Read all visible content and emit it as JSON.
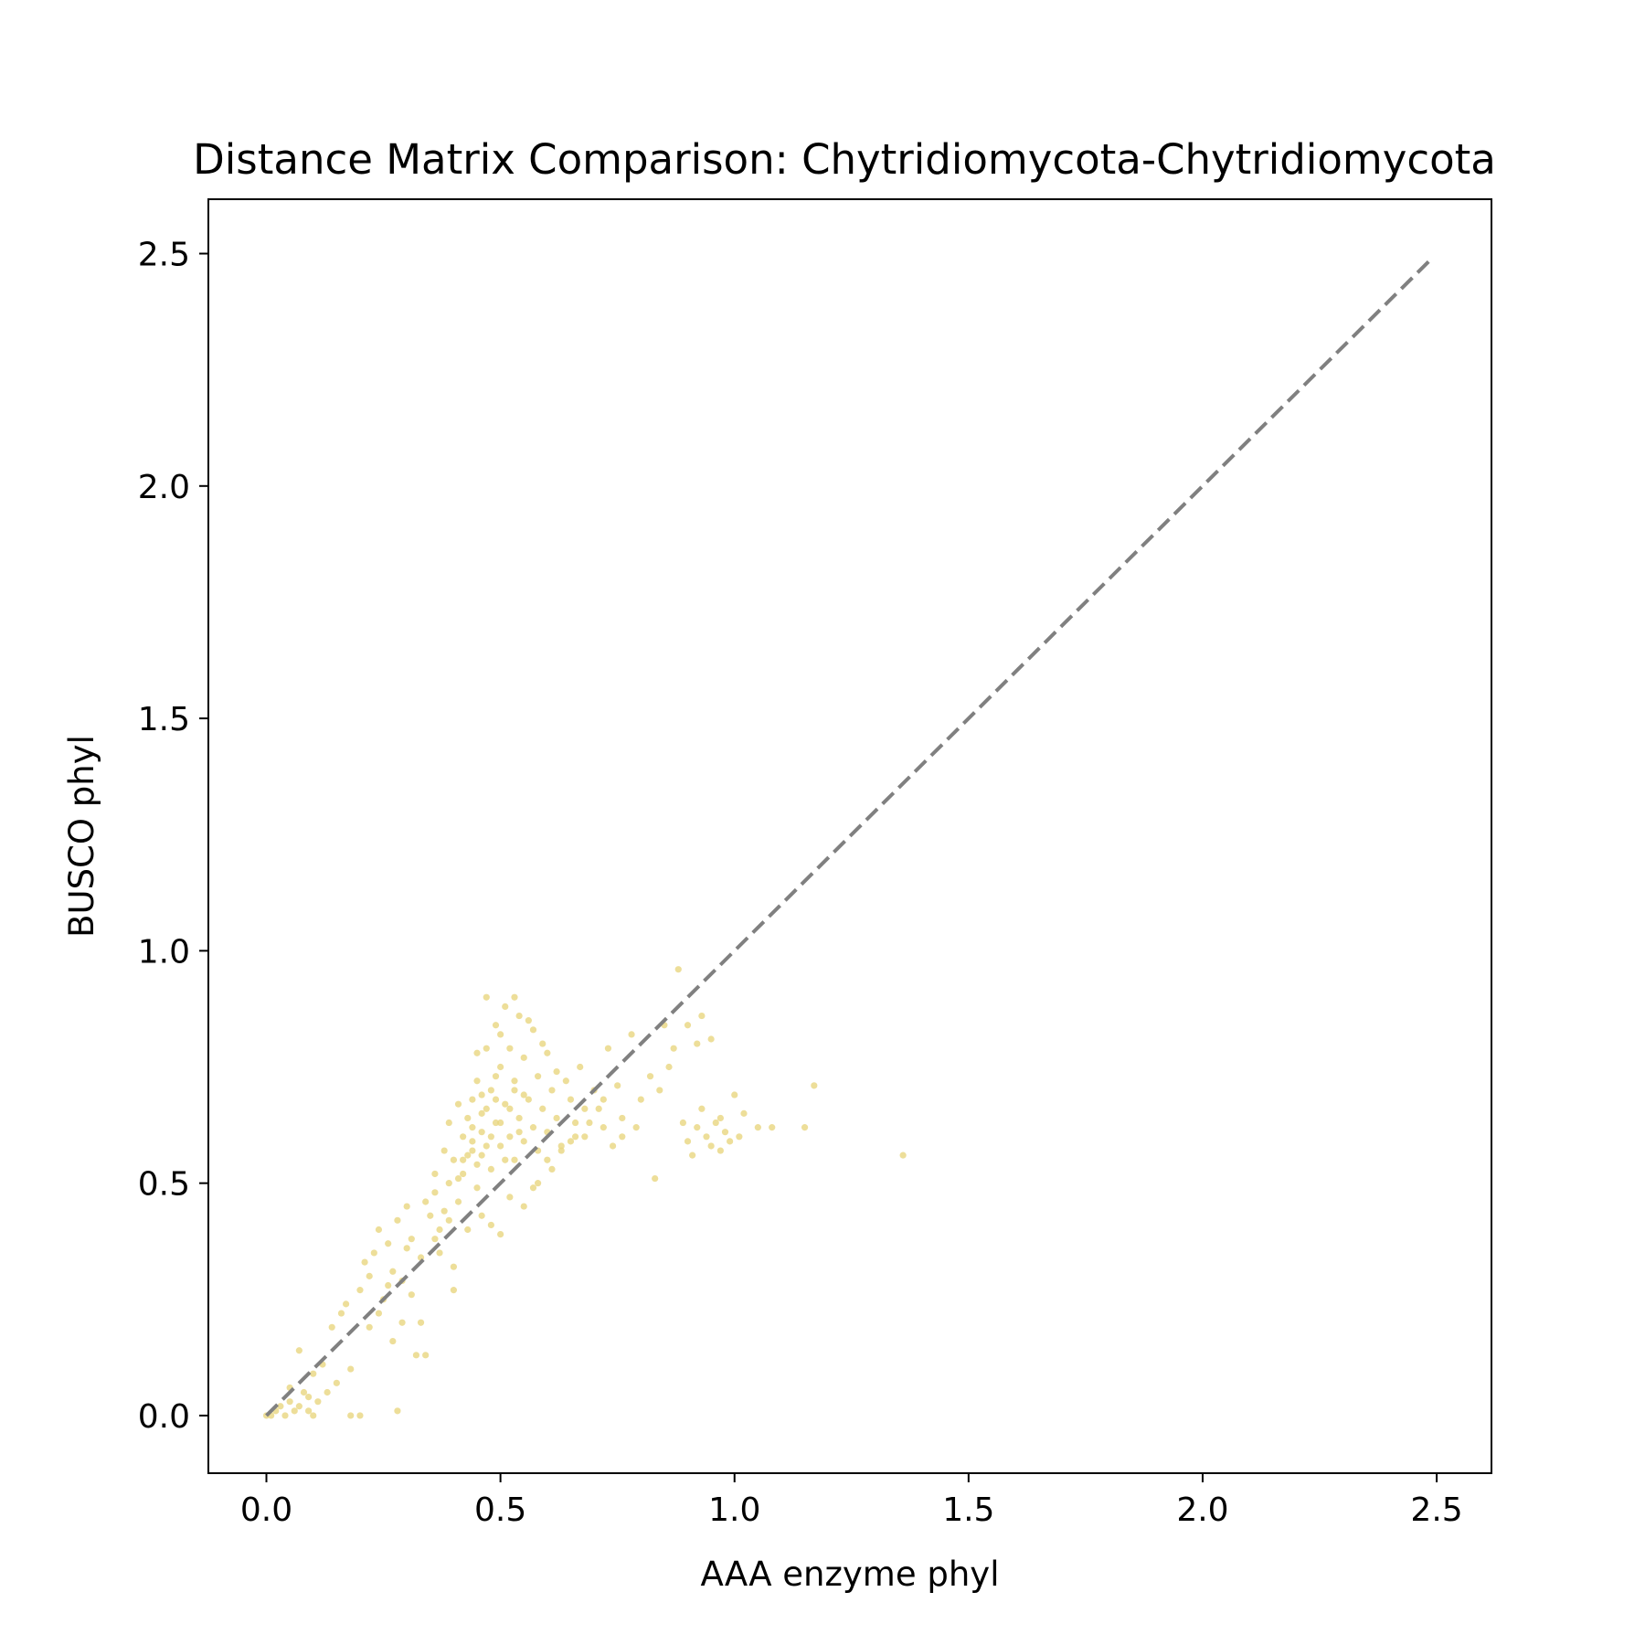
{
  "chart_data": {
    "type": "scatter",
    "title": "Distance Matrix Comparison: Chytridiomycota-Chytridiomycota",
    "xlabel": "AAA enzyme phyl",
    "ylabel": "BUSCO phyl",
    "xlim": [
      -0.124,
      2.617
    ],
    "ylim": [
      -0.124,
      2.617
    ],
    "xticks": [
      0.0,
      0.5,
      1.0,
      1.5,
      2.0,
      2.5
    ],
    "yticks": [
      0.0,
      0.5,
      1.0,
      1.5,
      2.0,
      2.5
    ],
    "xtick_labels": [
      "0.0",
      "0.5",
      "1.0",
      "1.5",
      "2.0",
      "2.5"
    ],
    "ytick_labels": [
      "0.0",
      "0.5",
      "1.0",
      "1.5",
      "2.0",
      "2.5"
    ],
    "grid": false,
    "point_color": "#e8d67f",
    "reference_line": {
      "style": "dashed",
      "color": "#808080",
      "x": [
        0.0,
        2.49
      ],
      "y": [
        0.0,
        2.49
      ]
    },
    "series": [
      {
        "values": [
          [
            0.0,
            0.0
          ],
          [
            0.01,
            0.0
          ],
          [
            0.02,
            0.01
          ],
          [
            0.03,
            0.02
          ],
          [
            0.04,
            0.0
          ],
          [
            0.05,
            0.03
          ],
          [
            0.06,
            0.01
          ],
          [
            0.07,
            0.02
          ],
          [
            0.08,
            0.05
          ],
          [
            0.09,
            0.04
          ],
          [
            0.1,
            0.0
          ],
          [
            0.1,
            0.09
          ],
          [
            0.07,
            0.14
          ],
          [
            0.05,
            0.06
          ],
          [
            0.12,
            0.11
          ],
          [
            0.14,
            0.19
          ],
          [
            0.16,
            0.22
          ],
          [
            0.17,
            0.24
          ],
          [
            0.18,
            0.0
          ],
          [
            0.2,
            0.0
          ],
          [
            0.28,
            0.01
          ],
          [
            0.2,
            0.27
          ],
          [
            0.21,
            0.33
          ],
          [
            0.22,
            0.3
          ],
          [
            0.23,
            0.35
          ],
          [
            0.24,
            0.4
          ],
          [
            0.25,
            0.25
          ],
          [
            0.26,
            0.37
          ],
          [
            0.27,
            0.31
          ],
          [
            0.28,
            0.42
          ],
          [
            0.29,
            0.29
          ],
          [
            0.3,
            0.45
          ],
          [
            0.31,
            0.38
          ],
          [
            0.32,
            0.13
          ],
          [
            0.34,
            0.13
          ],
          [
            0.31,
            0.26
          ],
          [
            0.33,
            0.34
          ],
          [
            0.35,
            0.43
          ],
          [
            0.36,
            0.48
          ],
          [
            0.37,
            0.35
          ],
          [
            0.38,
            0.44
          ],
          [
            0.39,
            0.5
          ],
          [
            0.4,
            0.27
          ],
          [
            0.4,
            0.55
          ],
          [
            0.41,
            0.46
          ],
          [
            0.42,
            0.6
          ],
          [
            0.42,
            0.52
          ],
          [
            0.43,
            0.64
          ],
          [
            0.44,
            0.57
          ],
          [
            0.44,
            0.68
          ],
          [
            0.45,
            0.49
          ],
          [
            0.45,
            0.72
          ],
          [
            0.46,
            0.61
          ],
          [
            0.46,
            0.56
          ],
          [
            0.47,
            0.66
          ],
          [
            0.47,
            0.79
          ],
          [
            0.48,
            0.53
          ],
          [
            0.48,
            0.7
          ],
          [
            0.49,
            0.63
          ],
          [
            0.49,
            0.84
          ],
          [
            0.5,
            0.58
          ],
          [
            0.5,
            0.75
          ],
          [
            0.51,
            0.67
          ],
          [
            0.51,
            0.88
          ],
          [
            0.52,
            0.6
          ],
          [
            0.52,
            0.79
          ],
          [
            0.53,
            0.55
          ],
          [
            0.53,
            0.72
          ],
          [
            0.54,
            0.64
          ],
          [
            0.54,
            0.86
          ],
          [
            0.55,
            0.59
          ],
          [
            0.55,
            0.77
          ],
          [
            0.56,
            0.68
          ],
          [
            0.57,
            0.62
          ],
          [
            0.57,
            0.83
          ],
          [
            0.58,
            0.57
          ],
          [
            0.58,
            0.73
          ],
          [
            0.59,
            0.66
          ],
          [
            0.6,
            0.61
          ],
          [
            0.6,
            0.78
          ],
          [
            0.61,
            0.7
          ],
          [
            0.62,
            0.64
          ],
          [
            0.63,
            0.58
          ],
          [
            0.64,
            0.72
          ],
          [
            0.65,
            0.68
          ],
          [
            0.66,
            0.63
          ],
          [
            0.67,
            0.75
          ],
          [
            0.68,
            0.6
          ],
          [
            0.7,
            0.7
          ],
          [
            0.71,
            0.66
          ],
          [
            0.72,
            0.62
          ],
          [
            0.73,
            0.79
          ],
          [
            0.74,
            0.58
          ],
          [
            0.75,
            0.71
          ],
          [
            0.76,
            0.64
          ],
          [
            0.78,
            0.82
          ],
          [
            0.8,
            0.68
          ],
          [
            0.82,
            0.73
          ],
          [
            0.83,
            0.51
          ],
          [
            0.85,
            0.84
          ],
          [
            0.88,
            0.96
          ],
          [
            0.89,
            0.63
          ],
          [
            0.9,
            0.59
          ],
          [
            0.91,
            0.56
          ],
          [
            0.92,
            0.62
          ],
          [
            0.93,
            0.66
          ],
          [
            0.94,
            0.6
          ],
          [
            0.95,
            0.58
          ],
          [
            0.96,
            0.63
          ],
          [
            0.97,
            0.57
          ],
          [
            0.98,
            0.61
          ],
          [
            1.0,
            0.69
          ],
          [
            1.02,
            0.65
          ],
          [
            1.05,
            0.62
          ],
          [
            1.08,
            0.62
          ],
          [
            1.15,
            0.62
          ],
          [
            1.17,
            0.71
          ],
          [
            1.36,
            0.56
          ],
          [
            0.93,
            0.86
          ],
          [
            0.95,
            0.81
          ],
          [
            0.4,
            0.32
          ],
          [
            0.43,
            0.4
          ],
          [
            0.46,
            0.43
          ],
          [
            0.48,
            0.41
          ],
          [
            0.5,
            0.39
          ],
          [
            0.52,
            0.47
          ],
          [
            0.55,
            0.45
          ],
          [
            0.58,
            0.5
          ],
          [
            0.61,
            0.53
          ],
          [
            0.38,
            0.57
          ],
          [
            0.36,
            0.52
          ],
          [
            0.34,
            0.46
          ],
          [
            0.39,
            0.63
          ],
          [
            0.41,
            0.67
          ],
          [
            0.45,
            0.78
          ],
          [
            0.47,
            0.9
          ],
          [
            0.5,
            0.82
          ],
          [
            0.53,
            0.9
          ],
          [
            0.56,
            0.85
          ],
          [
            0.59,
            0.8
          ],
          [
            0.62,
            0.74
          ],
          [
            0.65,
            0.59
          ],
          [
            0.68,
            0.66
          ],
          [
            0.44,
            0.62
          ],
          [
            0.46,
            0.65
          ],
          [
            0.48,
            0.6
          ],
          [
            0.5,
            0.63
          ],
          [
            0.52,
            0.66
          ],
          [
            0.54,
            0.61
          ],
          [
            0.49,
            0.68
          ],
          [
            0.47,
            0.58
          ],
          [
            0.51,
            0.55
          ],
          [
            0.45,
            0.54
          ],
          [
            0.43,
            0.56
          ],
          [
            0.55,
            0.69
          ],
          [
            0.53,
            0.7
          ],
          [
            0.49,
            0.73
          ],
          [
            0.46,
            0.69
          ],
          [
            0.44,
            0.59
          ],
          [
            0.42,
            0.55
          ],
          [
            0.29,
            0.2
          ],
          [
            0.27,
            0.16
          ],
          [
            0.33,
            0.2
          ],
          [
            0.3,
            0.36
          ],
          [
            0.26,
            0.28
          ],
          [
            0.24,
            0.22
          ],
          [
            0.22,
            0.19
          ],
          [
            0.18,
            0.1
          ],
          [
            0.15,
            0.07
          ],
          [
            0.13,
            0.05
          ],
          [
            0.11,
            0.03
          ],
          [
            0.09,
            0.01
          ],
          [
            0.36,
            0.38
          ],
          [
            0.37,
            0.4
          ],
          [
            0.39,
            0.42
          ],
          [
            0.41,
            0.51
          ],
          [
            0.57,
            0.49
          ],
          [
            0.6,
            0.55
          ],
          [
            0.63,
            0.57
          ],
          [
            0.66,
            0.6
          ],
          [
            0.69,
            0.63
          ],
          [
            0.72,
            0.68
          ],
          [
            0.76,
            0.6
          ],
          [
            0.79,
            0.62
          ],
          [
            0.84,
            0.7
          ],
          [
            0.86,
            0.75
          ],
          [
            0.87,
            0.79
          ],
          [
            0.9,
            0.84
          ],
          [
            0.92,
            0.8
          ],
          [
            0.97,
            0.64
          ],
          [
            0.99,
            0.59
          ],
          [
            1.01,
            0.6
          ]
        ]
      }
    ]
  }
}
